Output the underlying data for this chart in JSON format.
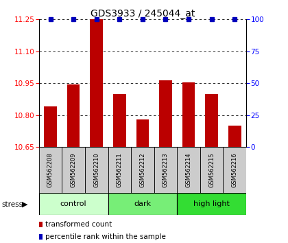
{
  "title": "GDS3933 / 245044_at",
  "samples": [
    "GSM562208",
    "GSM562209",
    "GSM562210",
    "GSM562211",
    "GSM562212",
    "GSM562213",
    "GSM562214",
    "GSM562215",
    "GSM562216"
  ],
  "bar_values": [
    10.84,
    10.945,
    11.25,
    10.9,
    10.78,
    10.965,
    10.955,
    10.9,
    10.75
  ],
  "percentile_values": [
    100,
    100,
    100,
    100,
    100,
    100,
    100,
    100,
    100
  ],
  "ylim": [
    10.65,
    11.25
  ],
  "yticks": [
    10.65,
    10.8,
    10.95,
    11.1,
    11.25
  ],
  "right_yticks": [
    0,
    25,
    50,
    75,
    100
  ],
  "right_ylim": [
    0,
    100
  ],
  "bar_color": "#bb0000",
  "dot_color": "#0000bb",
  "groups": [
    {
      "label": "control",
      "start": 0,
      "end": 3,
      "color": "#ccffcc"
    },
    {
      "label": "dark",
      "start": 3,
      "end": 6,
      "color": "#77ee77"
    },
    {
      "label": "high light",
      "start": 6,
      "end": 9,
      "color": "#33dd33"
    }
  ],
  "stress_label": "stress",
  "title_fontsize": 10,
  "tick_fontsize": 7.5,
  "bar_width": 0.55,
  "background_color": "#ffffff",
  "sample_box_color": "#cccccc"
}
